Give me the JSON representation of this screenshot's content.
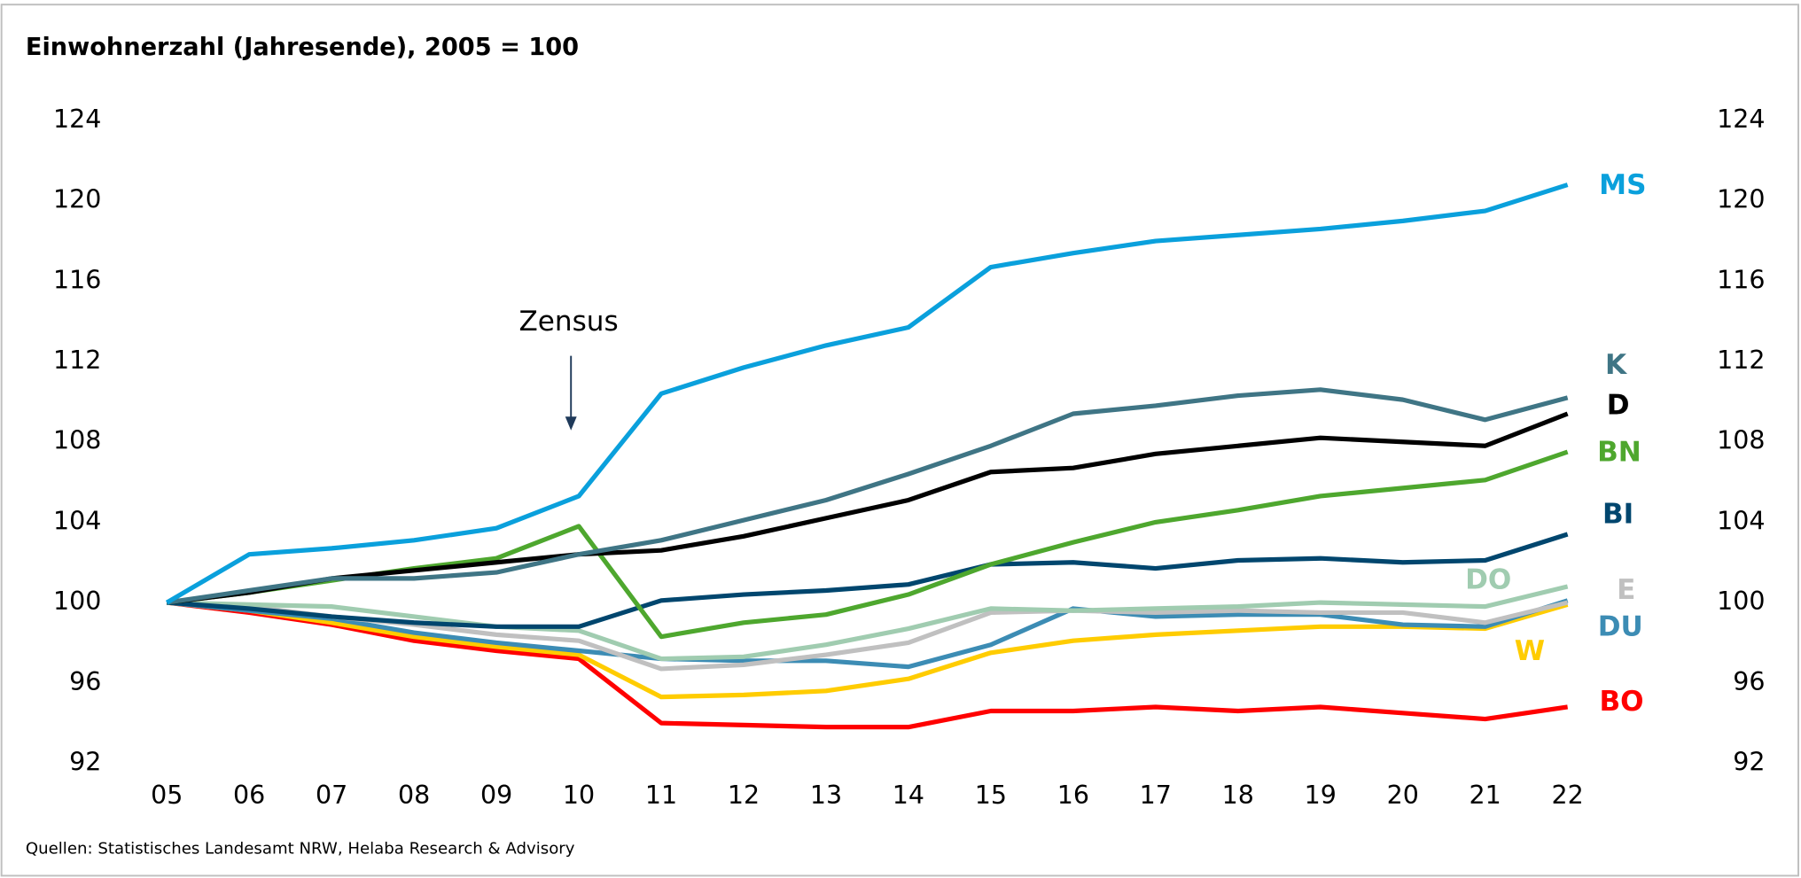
{
  "chart_data": {
    "type": "line",
    "title": "Einwohnerzahl (Jahresende), 2005 = 100",
    "annotation": "Zensus",
    "source": "Quellen: Statistisches Landesamt NRW, Helaba Research & Advisory",
    "categories": [
      "05",
      "06",
      "07",
      "08",
      "09",
      "10",
      "11",
      "12",
      "13",
      "14",
      "15",
      "16",
      "17",
      "18",
      "19",
      "20",
      "21",
      "22"
    ],
    "ylim": [
      92,
      124
    ],
    "yticks": [
      92,
      96,
      100,
      104,
      108,
      112,
      116,
      120,
      124
    ],
    "y2lim": [
      92,
      124
    ],
    "y2ticks": [
      92,
      96,
      100,
      104,
      108,
      112,
      116,
      120,
      124
    ],
    "series": [
      {
        "name": "MS",
        "color": "#0aa0dc",
        "values": [
          100,
          102.4,
          102.7,
          103.1,
          103.7,
          105.3,
          110.4,
          111.7,
          112.8,
          113.7,
          116.7,
          117.4,
          118.0,
          118.3,
          118.6,
          119.0,
          119.5,
          120.8
        ]
      },
      {
        "name": "K",
        "color": "#3f7585",
        "values": [
          100,
          100.6,
          101.2,
          101.2,
          101.5,
          102.4,
          103.1,
          104.1,
          105.1,
          106.4,
          107.8,
          109.4,
          109.8,
          110.3,
          110.6,
          110.1,
          109.1,
          110.2
        ]
      },
      {
        "name": "D",
        "color": "#000000",
        "values": [
          100,
          100.5,
          101.2,
          101.6,
          102.0,
          102.4,
          102.6,
          103.3,
          104.2,
          105.1,
          106.5,
          106.7,
          107.4,
          107.8,
          108.2,
          108.0,
          107.8,
          109.4
        ]
      },
      {
        "name": "BN",
        "color": "#4ea72e",
        "values": [
          100,
          100.5,
          101.1,
          101.7,
          102.2,
          103.8,
          98.3,
          99.0,
          99.4,
          100.4,
          101.9,
          103.0,
          104.0,
          104.6,
          105.3,
          105.7,
          106.1,
          107.5
        ]
      },
      {
        "name": "BI",
        "color": "#00466e",
        "values": [
          100,
          99.7,
          99.3,
          99.0,
          98.8,
          98.8,
          100.1,
          100.4,
          100.6,
          100.9,
          101.9,
          102.0,
          101.7,
          102.1,
          102.2,
          102.0,
          102.1,
          103.4
        ]
      },
      {
        "name": "DO",
        "color": "#a0ccb0",
        "values": [
          100,
          99.9,
          99.8,
          99.3,
          98.8,
          98.6,
          97.2,
          97.3,
          97.9,
          98.7,
          99.7,
          99.6,
          99.7,
          99.8,
          100.0,
          99.9,
          99.8,
          100.8
        ]
      },
      {
        "name": "E",
        "color": "#c0c0c0",
        "values": [
          100,
          99.8,
          99.3,
          98.9,
          98.4,
          98.1,
          96.7,
          96.9,
          97.4,
          98.0,
          99.5,
          99.6,
          99.5,
          99.6,
          99.5,
          99.5,
          99.0,
          100.0
        ]
      },
      {
        "name": "DU",
        "color": "#3c8cb4",
        "values": [
          100,
          99.6,
          99.2,
          98.5,
          98.0,
          97.6,
          97.2,
          97.1,
          97.1,
          96.8,
          97.9,
          99.7,
          99.3,
          99.4,
          99.4,
          98.9,
          98.8,
          100.1
        ]
      },
      {
        "name": "W",
        "color": "#ffcc00",
        "values": [
          100,
          99.6,
          99.0,
          98.3,
          97.8,
          97.4,
          95.3,
          95.4,
          95.6,
          96.2,
          97.5,
          98.1,
          98.4,
          98.6,
          98.8,
          98.8,
          98.7,
          99.9
        ]
      },
      {
        "name": "BO",
        "color": "#ff0000",
        "values": [
          100,
          99.5,
          98.9,
          98.1,
          97.6,
          97.2,
          94.0,
          93.9,
          93.8,
          93.8,
          94.6,
          94.6,
          94.8,
          94.6,
          94.8,
          94.5,
          94.2,
          94.8
        ]
      }
    ]
  }
}
